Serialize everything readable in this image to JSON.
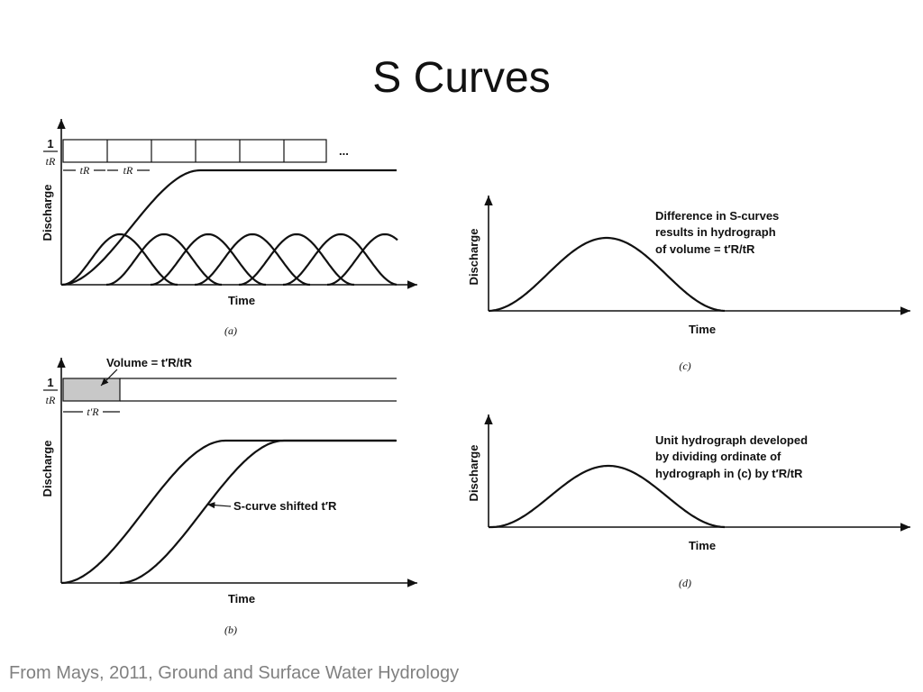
{
  "header": {
    "title": "S Curves"
  },
  "panels": [
    {
      "caption": "(a)",
      "y_label": "Discharge",
      "x_label": "Time",
      "rain_label": {
        "numerator": "1",
        "denominator": "tR"
      },
      "interval_labels": [
        "tR",
        "tR"
      ],
      "ellipsis": "..."
    },
    {
      "caption": "(b)",
      "y_label": "Discharge",
      "x_label": "Time",
      "rain_label": {
        "numerator": "1",
        "denominator": "tR"
      },
      "volume_label": "Volume = t′R/tR",
      "interval_label": "t′R",
      "curve_label": "S-curve shifted t′R"
    },
    {
      "caption": "(c)",
      "y_label": "Discharge",
      "x_label": "Time",
      "note": [
        "Difference in S-curves",
        "results in hydrograph",
        "of volume = t′R/tR"
      ]
    },
    {
      "caption": "(d)",
      "y_label": "Discharge",
      "x_label": "Time",
      "note": [
        "Unit hydrograph developed",
        "by dividing ordinate of",
        "hydrograph in (c) by t′R/tR"
      ]
    }
  ],
  "footer": {
    "source": "From Mays, 2011, Ground and Surface Water Hydrology"
  }
}
